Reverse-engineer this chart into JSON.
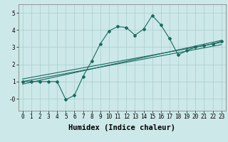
{
  "title": "",
  "xlabel": "Humidex (Indice chaleur)",
  "bg_color": "#cce8e8",
  "line_color": "#1a6b60",
  "grid_color": "#aacece",
  "xlim": [
    -0.5,
    23.5
  ],
  "ylim": [
    -0.7,
    5.5
  ],
  "xticks": [
    0,
    1,
    2,
    3,
    4,
    5,
    6,
    7,
    8,
    9,
    10,
    11,
    12,
    13,
    14,
    15,
    16,
    17,
    18,
    19,
    20,
    21,
    22,
    23
  ],
  "yticks": [
    0,
    1,
    2,
    3,
    4,
    5
  ],
  "ytick_labels": [
    "-0",
    "1",
    "2",
    "3",
    "4",
    "5"
  ],
  "main_x": [
    0,
    1,
    2,
    3,
    4,
    5,
    6,
    7,
    8,
    9,
    10,
    11,
    12,
    13,
    14,
    15,
    16,
    17,
    18,
    19,
    20,
    21,
    22,
    23
  ],
  "main_y": [
    1.0,
    1.0,
    1.0,
    1.0,
    1.0,
    -0.05,
    0.2,
    1.3,
    2.2,
    3.2,
    3.95,
    4.2,
    4.15,
    3.7,
    4.05,
    4.85,
    4.3,
    3.5,
    2.55,
    2.8,
    3.0,
    3.1,
    3.2,
    3.35
  ],
  "line1_y": [
    0.85,
    3.4
  ],
  "line2_y": [
    1.0,
    3.15
  ],
  "line3_y": [
    1.15,
    3.28
  ],
  "tick_fontsize": 5.5,
  "label_fontsize": 7.5
}
